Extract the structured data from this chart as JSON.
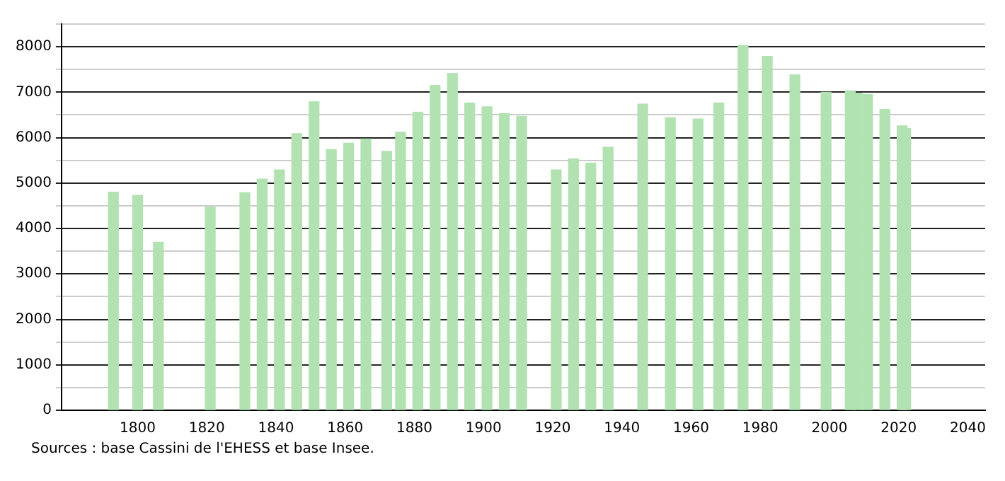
{
  "chart_data": {
    "type": "bar",
    "x": [
      1793,
      1800,
      1806,
      1821,
      1831,
      1836,
      1841,
      1846,
      1851,
      1856,
      1861,
      1866,
      1872,
      1876,
      1881,
      1886,
      1891,
      1896,
      1901,
      1906,
      1911,
      1921,
      1926,
      1931,
      1936,
      1946,
      1954,
      1962,
      1968,
      1975,
      1982,
      1990,
      1999,
      2006,
      2008,
      2011,
      2016,
      2021,
      2022
    ],
    "values": [
      4800,
      4730,
      3700,
      4470,
      4790,
      5090,
      5290,
      6090,
      6790,
      5740,
      5880,
      5970,
      5700,
      6120,
      6560,
      7150,
      7410,
      6760,
      6680,
      6530,
      6470,
      5290,
      5530,
      5440,
      5790,
      6740,
      6440,
      6410,
      6760,
      8030,
      7790,
      7380,
      7000,
      7030,
      6980,
      6950,
      6620,
      6260,
      6200
    ],
    "color": "#b2e2b2",
    "xlim": [
      1778,
      2045
    ],
    "xticks": [
      1800,
      1820,
      1840,
      1860,
      1880,
      1900,
      1920,
      1940,
      1960,
      1980,
      2000,
      2020,
      2040
    ],
    "ylim": [
      0,
      8500
    ],
    "yticks": [
      0,
      {
        "value": 500,
        "label": null
      },
      1000,
      {
        "value": 1500,
        "label": null
      },
      2000,
      {
        "value": 2500,
        "label": null
      },
      3000,
      {
        "value": 3500,
        "label": null
      },
      4000,
      {
        "value": 4500,
        "label": null
      },
      5000,
      {
        "value": 5500,
        "label": null
      },
      6000,
      {
        "value": 6500,
        "label": null
      },
      7000,
      {
        "value": 7500,
        "label": null
      },
      8000,
      {
        "value": 8500,
        "label": null
      }
    ],
    "grid": "y",
    "annotations": [
      "Sources : base Cassini de l'EHESS et base Insee."
    ]
  }
}
